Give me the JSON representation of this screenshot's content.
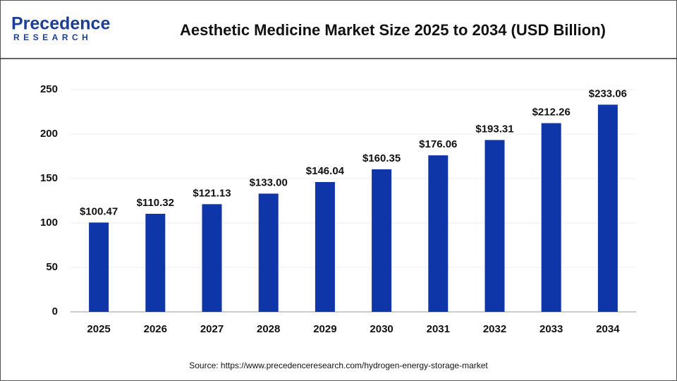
{
  "logo": {
    "name": "Precedence",
    "tagline": "RESEARCH"
  },
  "chart_data": {
    "type": "bar",
    "title": "Aesthetic Medicine Market Size 2025 to 2034 (USD Billion)",
    "categories": [
      "2025",
      "2026",
      "2027",
      "2028",
      "2029",
      "2030",
      "2031",
      "2032",
      "2033",
      "2034"
    ],
    "values": [
      100.47,
      110.32,
      121.13,
      133.0,
      146.04,
      160.35,
      176.06,
      193.31,
      212.26,
      233.06
    ],
    "value_labels": [
      "$100.47",
      "$110.32",
      "$121.13",
      "$133.00",
      "$146.04",
      "$160.35",
      "$176.06",
      "$193.31",
      "$212.26",
      "$233.06"
    ],
    "color": "#0f36a8",
    "ylim": [
      0,
      250
    ],
    "yticks": [
      0,
      50,
      100,
      150,
      200,
      250
    ],
    "grid": true,
    "source": "Source: https://www.precedenceresearch.com/hydrogen-energy-storage-market"
  }
}
